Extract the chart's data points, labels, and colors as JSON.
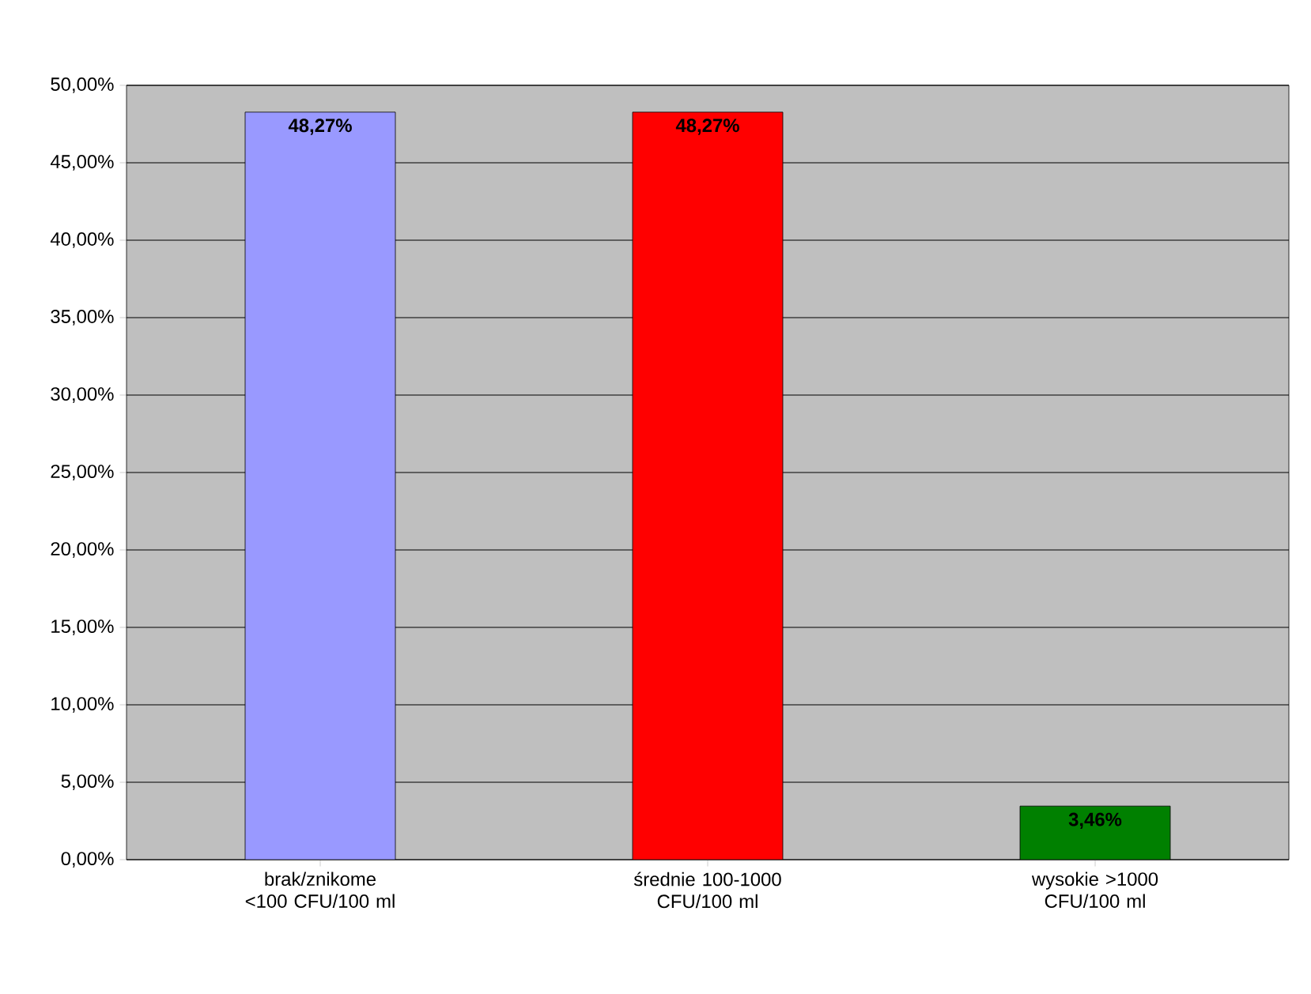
{
  "chart_data": {
    "type": "bar",
    "categories": [
      "brak/znikome <100 CFU/100 ml",
      "średnie 100-1000 CFU/100 ml",
      "wysokie >1000 CFU/100 ml"
    ],
    "values": [
      48.27,
      48.27,
      3.46
    ],
    "colors": [
      "#9999ff",
      "#ff0000",
      "#008000"
    ],
    "value_labels": [
      "48,27%",
      "48,27%",
      "3,46%"
    ],
    "ylim": [
      0,
      50
    ],
    "yticks": [
      {
        "value": 0,
        "label": "0,00%"
      },
      {
        "value": 5,
        "label": "5,00%"
      },
      {
        "value": 10,
        "label": "10,00%"
      },
      {
        "value": 15,
        "label": "15,00%"
      },
      {
        "value": 20,
        "label": "20,00%"
      },
      {
        "value": 25,
        "label": "25,00%"
      },
      {
        "value": 30,
        "label": "30,00%"
      },
      {
        "value": 35,
        "label": "35,00%"
      },
      {
        "value": 40,
        "label": "40,00%"
      },
      {
        "value": 45,
        "label": "45,00%"
      },
      {
        "value": 50,
        "label": "50,00%"
      }
    ],
    "grid": "y"
  }
}
